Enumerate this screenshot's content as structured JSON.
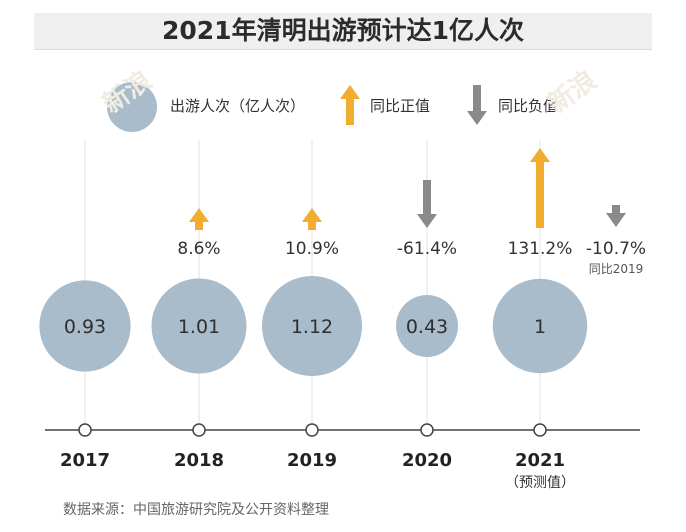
{
  "title": "2021年清明出游预计达1亿人次",
  "legend": {
    "bubble_label": "出游人次（亿人次）",
    "up_label": "同比正值",
    "down_label": "同比负值"
  },
  "colors": {
    "bubble": "#a9bccb",
    "up_arrow": "#f2ac2f",
    "down_arrow": "#8a8a8a",
    "axis": "#444444",
    "guide": "#e2e2e2"
  },
  "chart_data": {
    "type": "bubble",
    "title": "2021年清明出游预计达1亿人次",
    "categories": [
      "2017",
      "2018",
      "2019",
      "2020",
      "2021"
    ],
    "category_notes": [
      "",
      "",
      "",
      "",
      "（预测值）"
    ],
    "series": [
      {
        "name": "出游人次（亿人次）",
        "values": [
          0.93,
          1.01,
          1.12,
          0.43,
          1
        ]
      },
      {
        "name": "同比",
        "values": [
          null,
          8.6,
          10.9,
          -61.4,
          131.2
        ],
        "labels": [
          "",
          "8.6%",
          "10.9%",
          "-61.4%",
          "131.2%"
        ]
      }
    ],
    "extra_change": {
      "value": -10.7,
      "label": "-10.7%",
      "note": "同比2019",
      "category": "2021"
    },
    "legend": "top"
  },
  "source": "数据来源：中国旅游研究院及公开资料整理"
}
